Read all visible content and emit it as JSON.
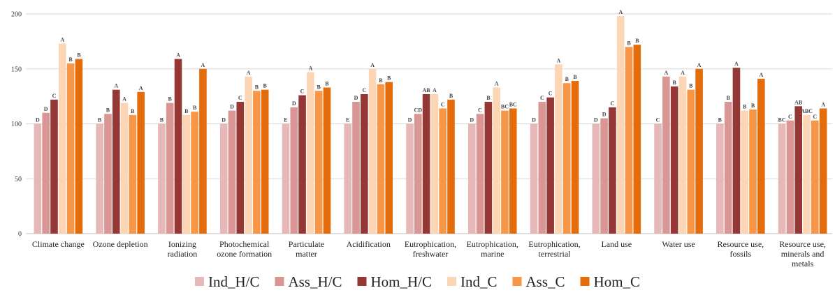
{
  "chart_data": {
    "type": "bar",
    "title": "",
    "xlabel": "",
    "ylabel": "",
    "ylim": [
      0,
      200
    ],
    "yticks": [
      0,
      50,
      100,
      150,
      200
    ],
    "grid": true,
    "legend_position": "bottom",
    "categories": [
      [
        "Climate change"
      ],
      [
        "Ozone depletion"
      ],
      [
        "Ionizing",
        "radiation"
      ],
      [
        "Photochemical",
        "ozone formation"
      ],
      [
        "Particulate",
        "matter"
      ],
      [
        "Acidification"
      ],
      [
        "Eutrophication,",
        "freshwater"
      ],
      [
        "Eutrophication,",
        "marine"
      ],
      [
        "Eutrophication,",
        "terrestrial"
      ],
      [
        "Land use"
      ],
      [
        "Water use"
      ],
      [
        "Resource use,",
        "fossils"
      ],
      [
        "Resource use,",
        "minerals and",
        "metals"
      ]
    ],
    "series": [
      {
        "name": "Ind_H/C",
        "color": "#e6b8b7",
        "values": [
          100,
          100,
          100,
          100,
          100,
          100,
          100,
          100,
          100,
          100,
          100,
          100,
          100
        ],
        "labels": [
          "D",
          "B",
          "B",
          "D",
          "E",
          "E",
          "D",
          "D",
          "D",
          "D",
          "C",
          "B",
          "BC"
        ]
      },
      {
        "name": "Ass_H/C",
        "color": "#da9694",
        "values": [
          110,
          109,
          119,
          112,
          115,
          120,
          109,
          109,
          120,
          105,
          143,
          120,
          103
        ],
        "labels": [
          "D",
          "B",
          "B",
          "D",
          "D",
          "D",
          "CD",
          "C",
          "C",
          "D",
          "A",
          "B",
          "C"
        ]
      },
      {
        "name": "Hom_H/C",
        "color": "#953735",
        "values": [
          122,
          131,
          159,
          120,
          126,
          127,
          127,
          120,
          124,
          115,
          134,
          151,
          116
        ],
        "labels": [
          "C",
          "A",
          "A",
          "C",
          "C",
          "C",
          "AB",
          "B",
          "C",
          "C",
          "B",
          "A",
          "AB"
        ]
      },
      {
        "name": "Ind_C",
        "color": "#fcd5b4",
        "values": [
          173,
          119,
          108,
          143,
          147,
          150,
          127,
          133,
          154,
          198,
          143,
          112,
          108
        ],
        "labels": [
          "A",
          "A",
          "B",
          "A",
          "A",
          "A",
          "A",
          "A",
          "A",
          "A",
          "A",
          "B",
          "ABC"
        ]
      },
      {
        "name": "Ass_C",
        "color": "#f79646",
        "values": [
          155,
          108,
          111,
          130,
          130,
          136,
          114,
          112,
          137,
          170,
          131,
          113,
          103
        ],
        "labels": [
          "B",
          "B",
          "B",
          "B",
          "B",
          "B",
          "C",
          "BC",
          "B",
          "B",
          "B",
          "B",
          "C"
        ]
      },
      {
        "name": "Hom_C",
        "color": "#e46c0a",
        "values": [
          159,
          129,
          150,
          131,
          133,
          138,
          122,
          114,
          139,
          172,
          150,
          141,
          114
        ],
        "labels": [
          "B",
          "A",
          "A",
          "B",
          "B",
          "B",
          "B",
          "BC",
          "B",
          "B",
          "A",
          "A",
          "A"
        ]
      }
    ]
  }
}
